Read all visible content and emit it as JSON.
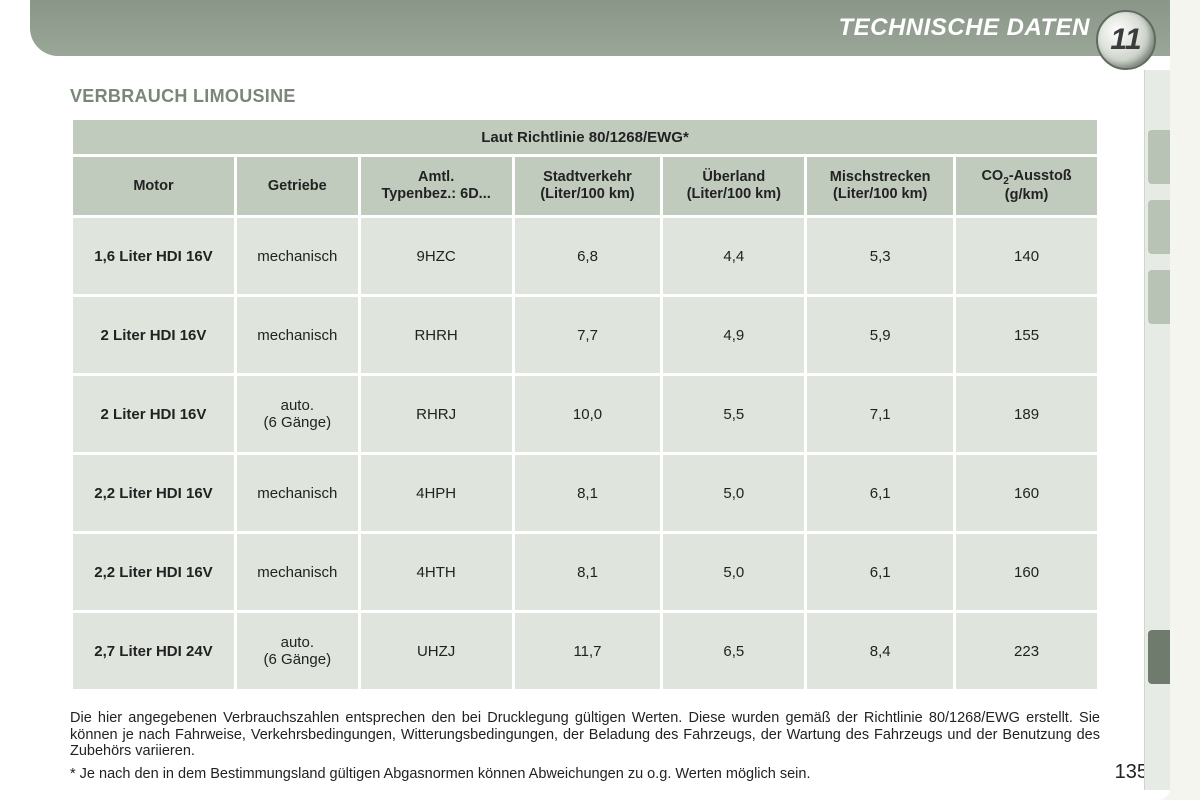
{
  "header": {
    "title": "TECHNISCHE DATEN",
    "chapter_number": "11"
  },
  "section_title": "VERBRAUCH LIMOUSINE",
  "table": {
    "super_header": "Laut Richtlinie 80/1268/EWG*",
    "columns": [
      "Motor",
      "Getriebe",
      "Amtl.\nTypenbez.: 6D...",
      "Stadtverkehr\n(Liter/100 km)",
      "Überland\n(Liter/100 km)",
      "Mischstrecken\n(Liter/100 km)",
      "CO₂-Ausstoß\n(g/km)"
    ],
    "col_widths": [
      "16%",
      "12%",
      "15%",
      "14.5%",
      "14%",
      "14.5%",
      "14%"
    ],
    "rows": [
      {
        "motor": "1,6 Liter HDI 16V",
        "getriebe": "mechanisch",
        "typ": "9HZC",
        "stadt": "6,8",
        "ueber": "4,4",
        "misch": "5,3",
        "co2": "140"
      },
      {
        "motor": "2 Liter HDI 16V",
        "getriebe": "mechanisch",
        "typ": "RHRH",
        "stadt": "7,7",
        "ueber": "4,9",
        "misch": "5,9",
        "co2": "155"
      },
      {
        "motor": "2 Liter HDI 16V",
        "getriebe": "auto.\n(6 Gänge)",
        "typ": "RHRJ",
        "stadt": "10,0",
        "ueber": "5,5",
        "misch": "7,1",
        "co2": "189"
      },
      {
        "motor": "2,2 Liter HDI 16V",
        "getriebe": "mechanisch",
        "typ": "4HPH",
        "stadt": "8,1",
        "ueber": "5,0",
        "misch": "6,1",
        "co2": "160"
      },
      {
        "motor": "2,2 Liter HDI 16V",
        "getriebe": "mechanisch",
        "typ": "4HTH",
        "stadt": "8,1",
        "ueber": "5,0",
        "misch": "6,1",
        "co2": "160"
      },
      {
        "motor": "2,7 Liter HDI 24V",
        "getriebe": "auto.\n(6 Gänge)",
        "typ": "UHZJ",
        "stadt": "11,7",
        "ueber": "6,5",
        "misch": "8,4",
        "co2": "223"
      }
    ],
    "header_bg": "#c0cbbd",
    "cell_bg": "#dfe5dc"
  },
  "footnote_main": "Die hier angegebenen Verbrauchszahlen entsprechen den bei Drucklegung gültigen Werten. Diese wurden gemäß der Richtlinie 80/1268/EWG erstellt. Sie können je nach Fahrweise, Verkehrsbedingungen, Witterungsbedingungen, der Beladung des Fahrzeugs, der Wartung des Fahrzeugs und der Benutzung des Zubehörs variieren.",
  "footnote_asterisk": "* Je nach den in dem Bestimmungsland gültigen Abgasnormen können Abweichungen zu o.g. Werten möglich sein.",
  "page_number": "135"
}
